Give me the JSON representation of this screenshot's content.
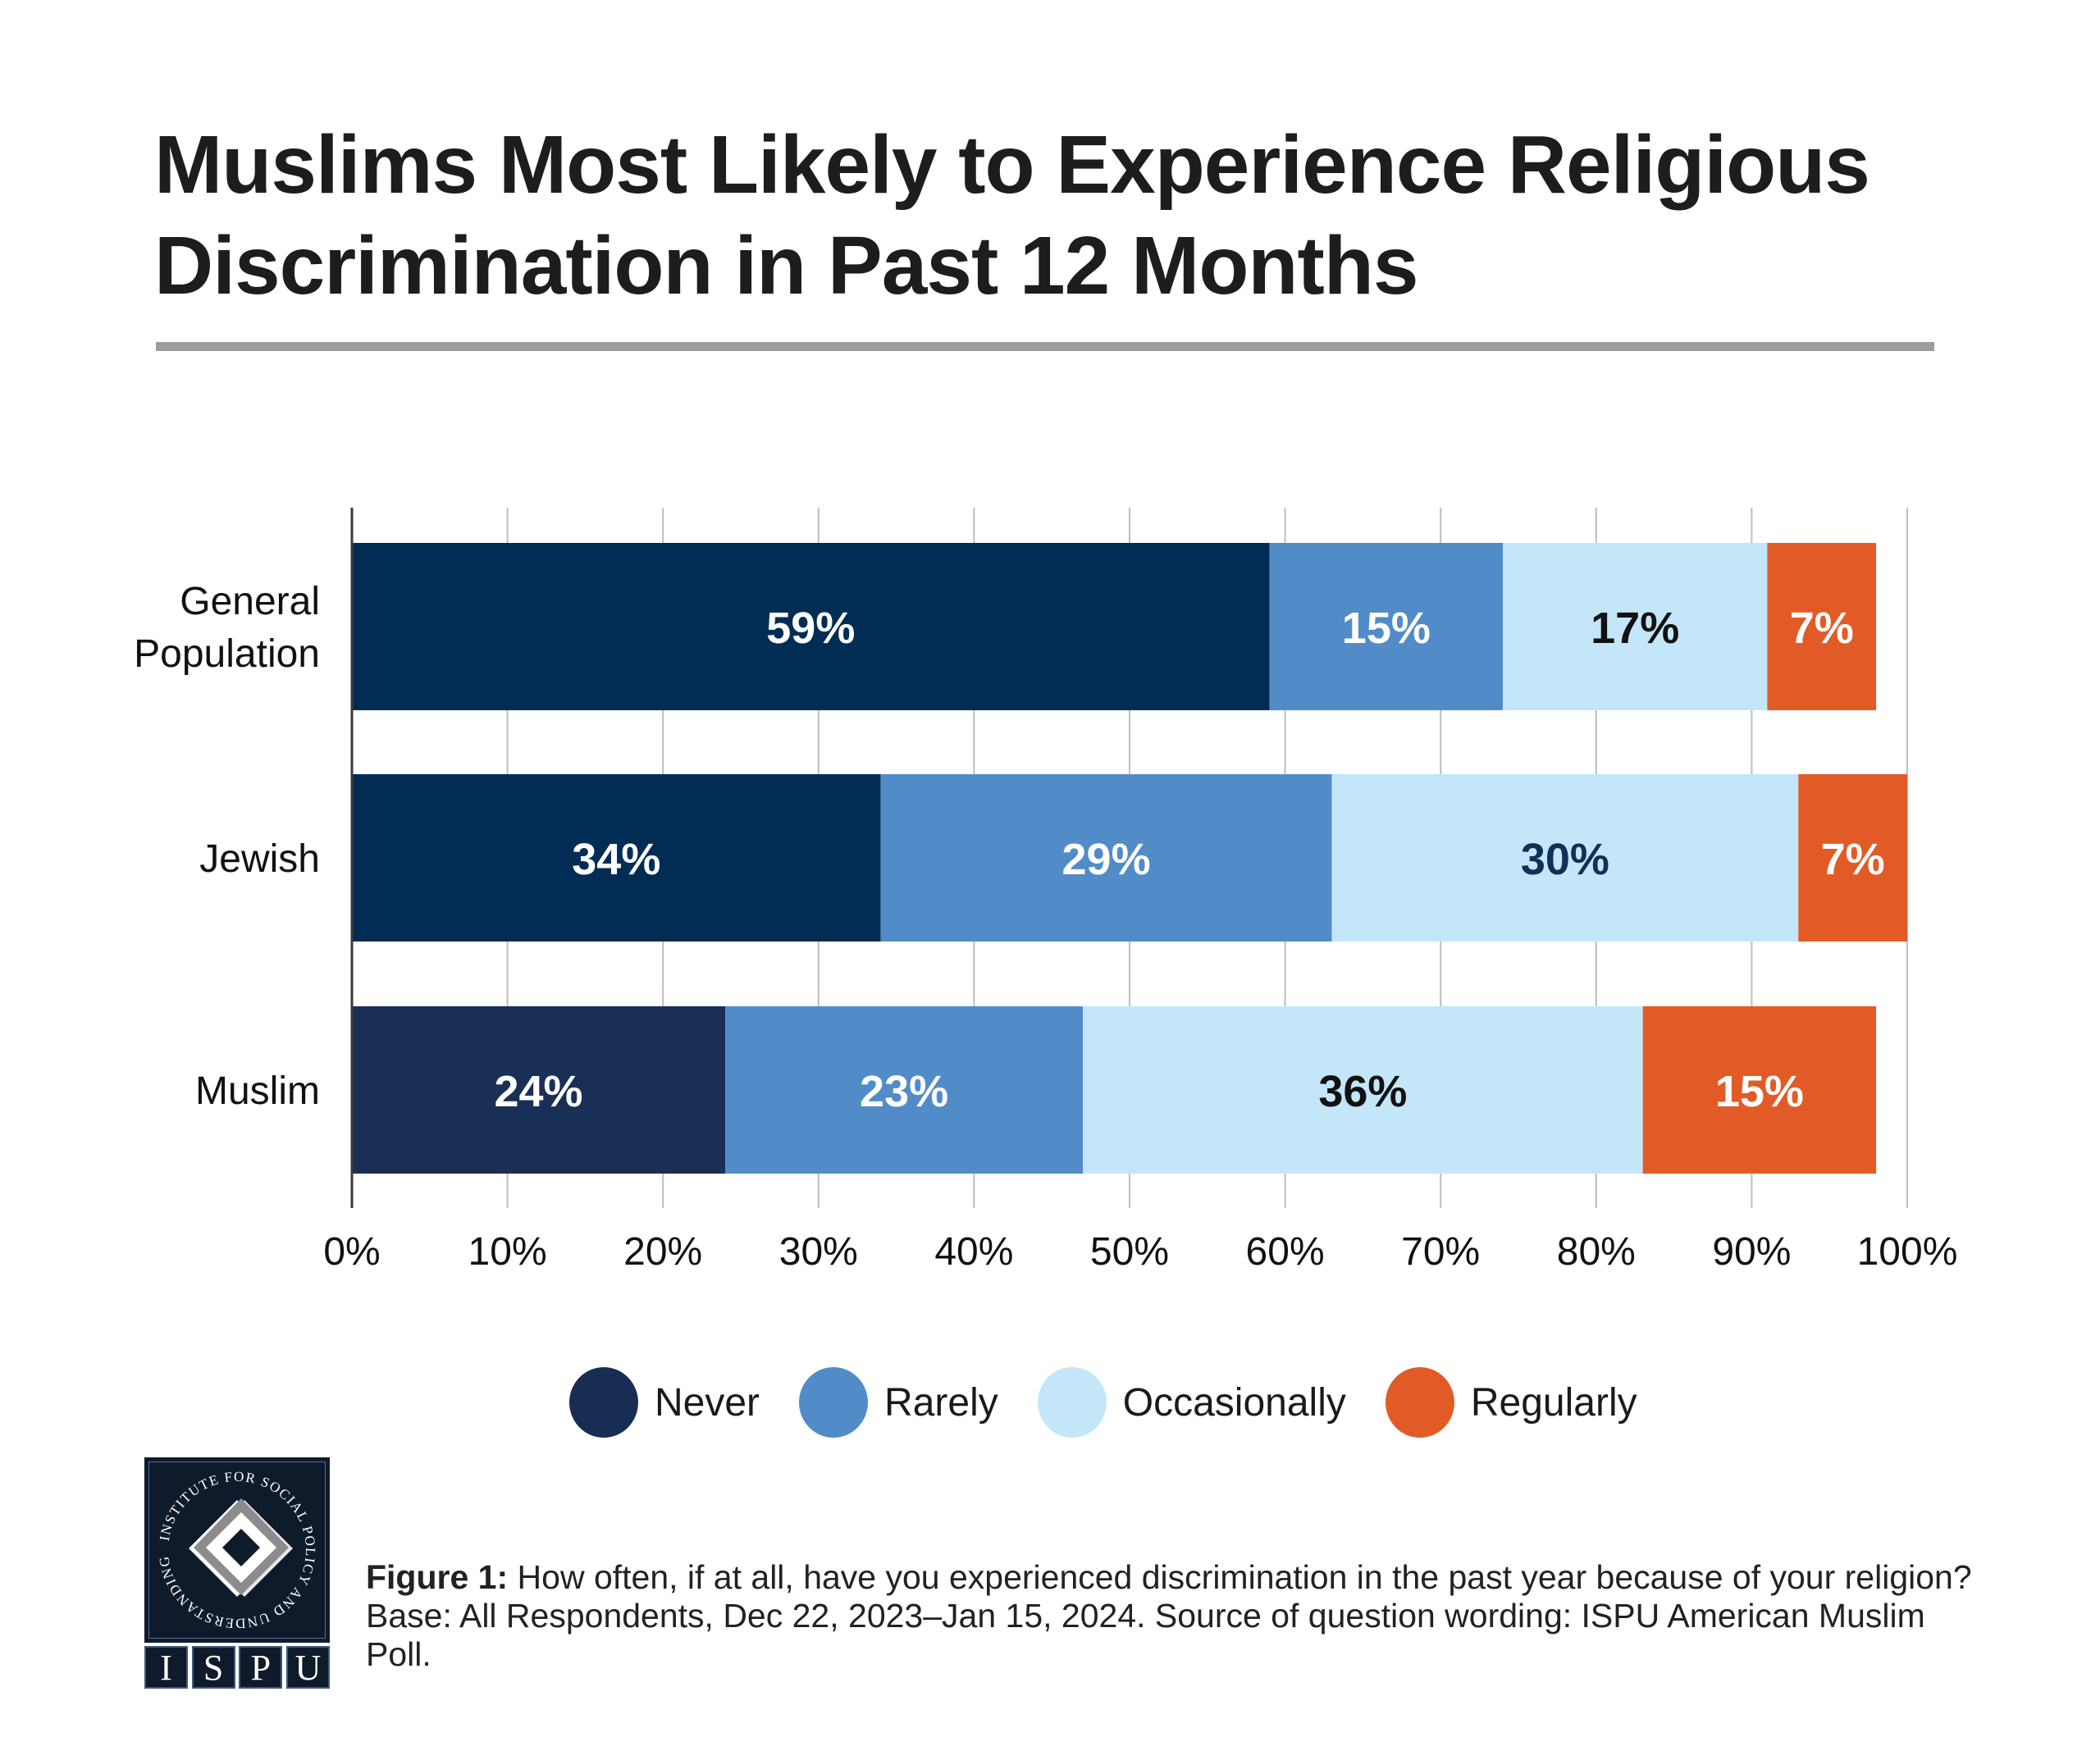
{
  "header": {
    "title_line1": "Muslims Most Likely to Experience Religious",
    "title_line2": "Discrimination in Past 12 Months"
  },
  "chart_data": {
    "type": "bar",
    "orientation": "horizontal",
    "stacked": true,
    "title": "Muslims Most Likely to Experience Religious Discrimination in Past 12 Months",
    "xlabel": "",
    "ylabel": "",
    "xlim": [
      0,
      100
    ],
    "x_ticks": [
      "0%",
      "10%",
      "20%",
      "30%",
      "40%",
      "50%",
      "60%",
      "70%",
      "80%",
      "90%",
      "100%"
    ],
    "grid": "vertical",
    "legend_position": "bottom",
    "categories": [
      {
        "label_lines": [
          "General",
          "Population"
        ],
        "name": "General Population"
      },
      {
        "label_lines": [
          "Jewish"
        ],
        "name": "Jewish"
      },
      {
        "label_lines": [
          "Muslim"
        ],
        "name": "Muslim"
      }
    ],
    "series": [
      {
        "name": "Never",
        "color": "#012d54",
        "values": [
          59,
          34,
          24
        ],
        "label_colors": [
          "#ffffff",
          "#ffffff",
          "#ffffff"
        ]
      },
      {
        "name": "Rarely",
        "color": "#528cc8",
        "values": [
          15,
          29,
          23
        ],
        "label_colors": [
          "#ffffff",
          "#ffffff",
          "#ffffff"
        ]
      },
      {
        "name": "Occasionally",
        "color": "#c3e6f8",
        "values": [
          17,
          30,
          36
        ],
        "label_colors": [
          "#111111",
          "#0f3057",
          "#111111"
        ]
      },
      {
        "name": "Regularly",
        "color": "#e25b27",
        "values": [
          7,
          7,
          15
        ],
        "label_colors": [
          "#ffffff",
          "#ffffff",
          "#ffffff"
        ]
      }
    ],
    "row_overrides": {
      "Muslim": {
        "Never": "#1a2f55"
      }
    },
    "value_suffix": "%"
  },
  "legend": {
    "items": [
      {
        "label": "Never",
        "color": "#172d53"
      },
      {
        "label": "Rarely",
        "color": "#528cc8"
      },
      {
        "label": "Occasionally",
        "color": "#c3e6f8"
      },
      {
        "label": "Regularly",
        "color": "#e25b27"
      }
    ]
  },
  "logo": {
    "ring_text": "INSTITUTE FOR SOCIAL POLICY AND UNDERSTANDING",
    "letters": [
      "I",
      "S",
      "P",
      "U"
    ]
  },
  "caption": {
    "bold": "Figure 1:",
    "text": " How often, if at all, have you experienced discrimination in the past year because of your religion? Base: All Respondents, Dec 22, 2023–Jan 15, 2024. Source of question wording:  ISPU American Muslim Poll."
  }
}
